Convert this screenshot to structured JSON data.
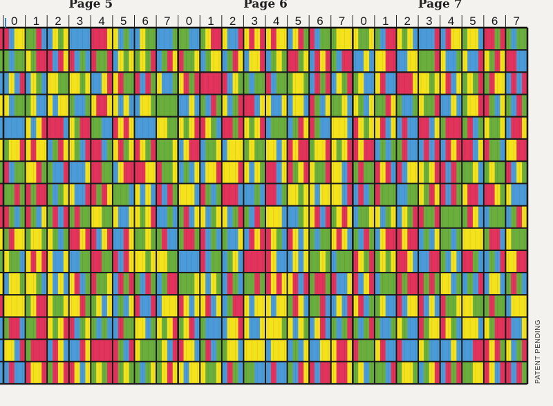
{
  "pages": [
    {
      "label": "Page 5",
      "columns": [
        "0",
        "1",
        "2",
        "3",
        "4",
        "5",
        "6",
        "7"
      ]
    },
    {
      "label": "Page 6",
      "columns": [
        "0",
        "1",
        "2",
        "3",
        "4",
        "5",
        "6",
        "7"
      ]
    },
    {
      "label": "Page 7",
      "columns": [
        "0",
        "1",
        "2",
        "3",
        "4",
        "5",
        "6",
        "7"
      ]
    }
  ],
  "footer": "PATENT PENDING"
}
